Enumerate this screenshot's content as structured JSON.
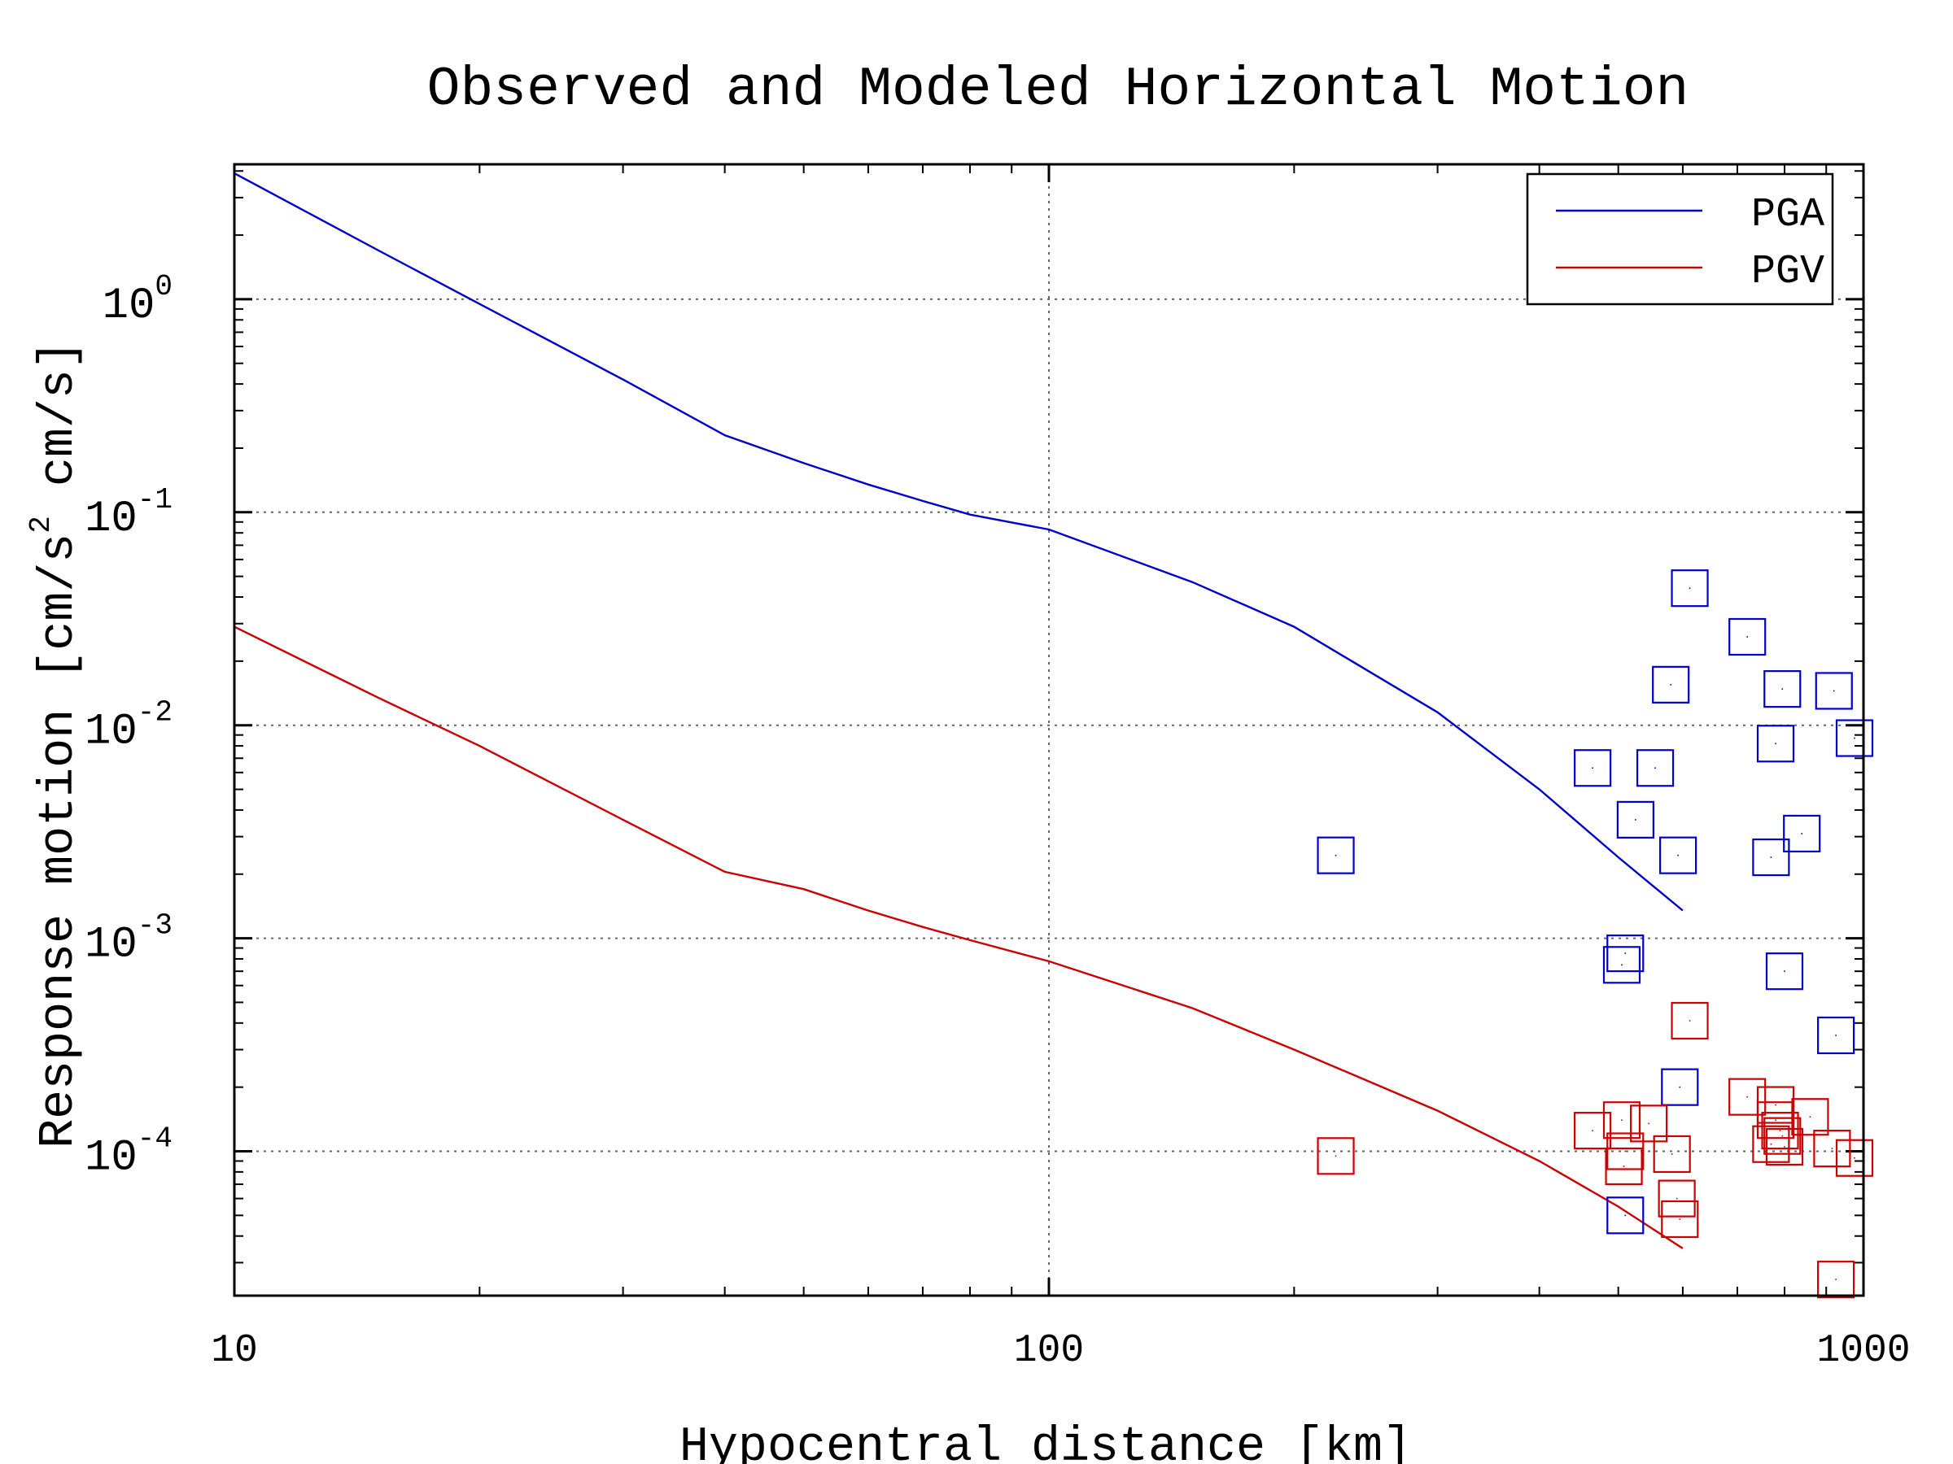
{
  "chart_data": {
    "type": "scatter",
    "title": "Observed and Modeled Horizontal Motion",
    "xlabel": "Hypocentral distance [km]",
    "ylabel_main": "Response motion  [cm/s",
    "ylabel_sup": "2",
    "ylabel_tail": " cm/s]",
    "x_scale": "log",
    "y_scale": "log",
    "xlim": [
      10,
      1000
    ],
    "ylim": [
      2.1e-05,
      4.3
    ],
    "x_ticks": [
      {
        "value": 10,
        "label": "10"
      },
      {
        "value": 100,
        "label": "100"
      },
      {
        "value": 1000,
        "label": "1000"
      }
    ],
    "y_ticks": [
      {
        "value": 1,
        "base": "10",
        "exp": "0"
      },
      {
        "value": 0.1,
        "base": "10",
        "exp": "-1"
      },
      {
        "value": 0.01,
        "base": "10",
        "exp": "-2"
      },
      {
        "value": 0.001,
        "base": "10",
        "exp": "-3"
      },
      {
        "value": 0.0001,
        "base": "10",
        "exp": "-4"
      }
    ],
    "grid": true,
    "legend_position": "top-right",
    "series": [
      {
        "name": "PGA",
        "color": "#0000cc",
        "kind": "line",
        "x": [
          10,
          15,
          20,
          30,
          40,
          50,
          60,
          70,
          80,
          100,
          150,
          200,
          300,
          400,
          500,
          600
        ],
        "y": [
          3.9,
          1.7,
          0.95,
          0.42,
          0.23,
          0.17,
          0.135,
          0.113,
          0.0975,
          0.083,
          0.047,
          0.029,
          0.0115,
          0.005,
          0.0024,
          0.00135
        ]
      },
      {
        "name": "PGV",
        "color": "#cc0000",
        "kind": "line",
        "x": [
          10,
          15,
          20,
          30,
          40,
          50,
          60,
          70,
          80,
          100,
          150,
          200,
          300,
          400,
          500,
          600
        ],
        "y": [
          0.029,
          0.0135,
          0.008,
          0.0036,
          0.00205,
          0.0017,
          0.00135,
          0.00113,
          0.00098,
          0.00078,
          0.00047,
          0.0003,
          0.000155,
          9e-05,
          5.5e-05,
          3.5e-05
        ]
      },
      {
        "name": "",
        "color": "#0000cc",
        "kind": "markers",
        "x": [
          225,
          465,
          525,
          510,
          505,
          510,
          555,
          580,
          592,
          595,
          612,
          720,
          770,
          780,
          795,
          800,
          840,
          920,
          925,
          975
        ],
        "y": [
          0.00245,
          0.0063,
          0.0036,
          0.00085,
          0.00075,
          5e-05,
          0.0063,
          0.0155,
          0.00245,
          0.0002,
          0.044,
          0.026,
          0.0024,
          0.0082,
          0.0148,
          0.0007,
          0.0031,
          0.0145,
          0.00035,
          0.0087
        ]
      },
      {
        "name": "",
        "color": "#cc0000",
        "kind": "markers",
        "x": [
          225,
          465,
          505,
          510,
          508,
          545,
          582,
          590,
          595,
          612,
          720,
          770,
          780,
          780,
          790,
          795,
          800,
          860,
          915,
          925,
          975
        ],
        "y": [
          9.5e-05,
          0.000125,
          0.00014,
          0.0001,
          8.5e-05,
          0.000135,
          9.7e-05,
          6e-05,
          4.8e-05,
          0.00041,
          0.00018,
          0.000108,
          0.00014,
          0.000165,
          0.000125,
          0.000118,
          0.000105,
          0.000145,
          0.000103,
          2.5e-05,
          9.3e-05
        ]
      }
    ]
  }
}
